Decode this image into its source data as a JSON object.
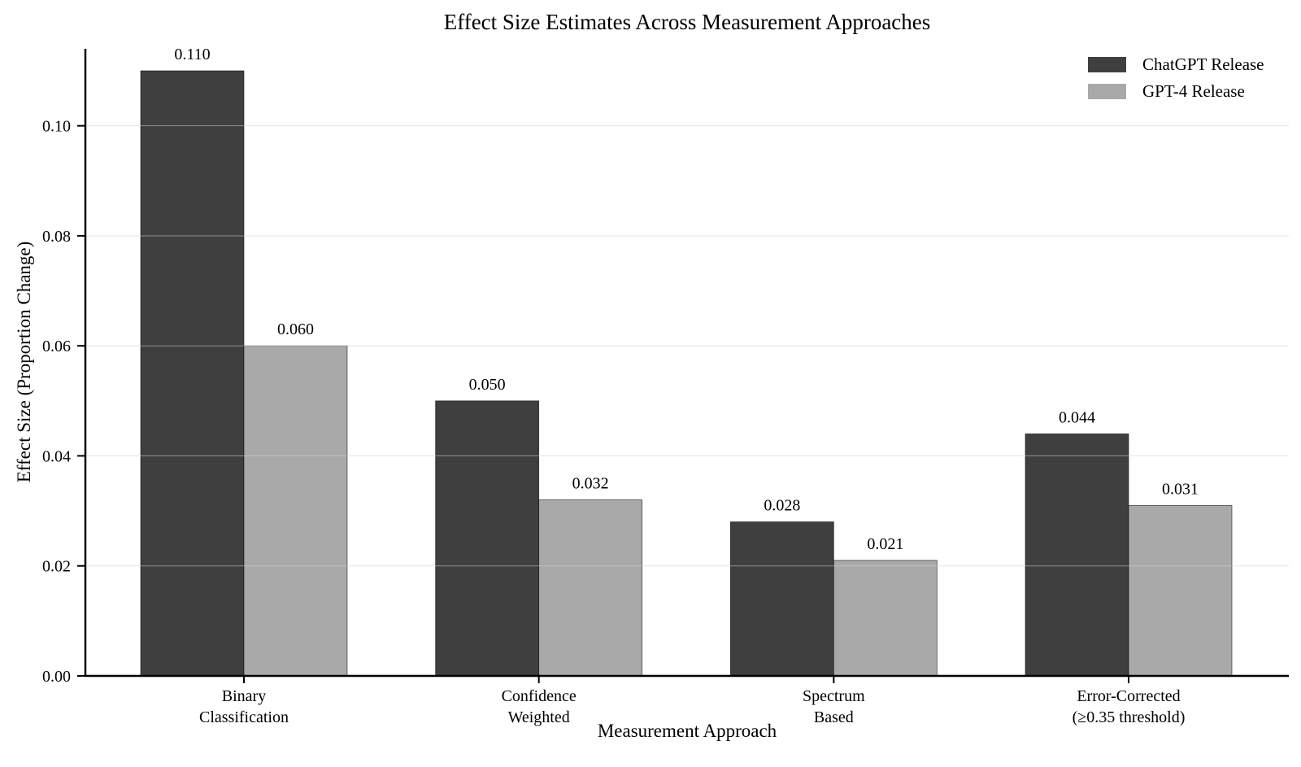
{
  "chart_data": {
    "type": "bar",
    "title": "Effect Size Estimates Across Measurement Approaches",
    "xlabel": "Measurement Approach",
    "ylabel": "Effect Size (Proportion Change)",
    "categories": [
      [
        "Binary",
        "Classification"
      ],
      [
        "Confidence",
        "Weighted"
      ],
      [
        "Spectrum",
        "Based"
      ],
      [
        "Error-Corrected",
        "(≥0.35 threshold)"
      ]
    ],
    "series": [
      {
        "name": "ChatGPT Release",
        "color": "#3f3f3f",
        "values": [
          0.11,
          0.05,
          0.028,
          0.044
        ],
        "labels": [
          "0.110",
          "0.050",
          "0.028",
          "0.044"
        ]
      },
      {
        "name": "GPT-4 Release",
        "color": "#a9a9a9",
        "values": [
          0.06,
          0.032,
          0.021,
          0.031
        ],
        "labels": [
          "0.060",
          "0.032",
          "0.021",
          "0.031"
        ]
      }
    ],
    "yticks": [
      {
        "value": 0.0,
        "label": "0.00"
      },
      {
        "value": 0.02,
        "label": "0.02"
      },
      {
        "value": 0.04,
        "label": "0.04"
      },
      {
        "value": 0.06,
        "label": "0.06"
      },
      {
        "value": 0.08,
        "label": "0.08"
      },
      {
        "value": 0.1,
        "label": "0.10"
      }
    ],
    "ylim": [
      0,
      0.114
    ],
    "grid": true,
    "legend_position": "upper right",
    "colors": {
      "axis": "#000000",
      "gridline": "#cfcfcf",
      "bar_edge": "#000000",
      "background": "#ffffff"
    }
  }
}
